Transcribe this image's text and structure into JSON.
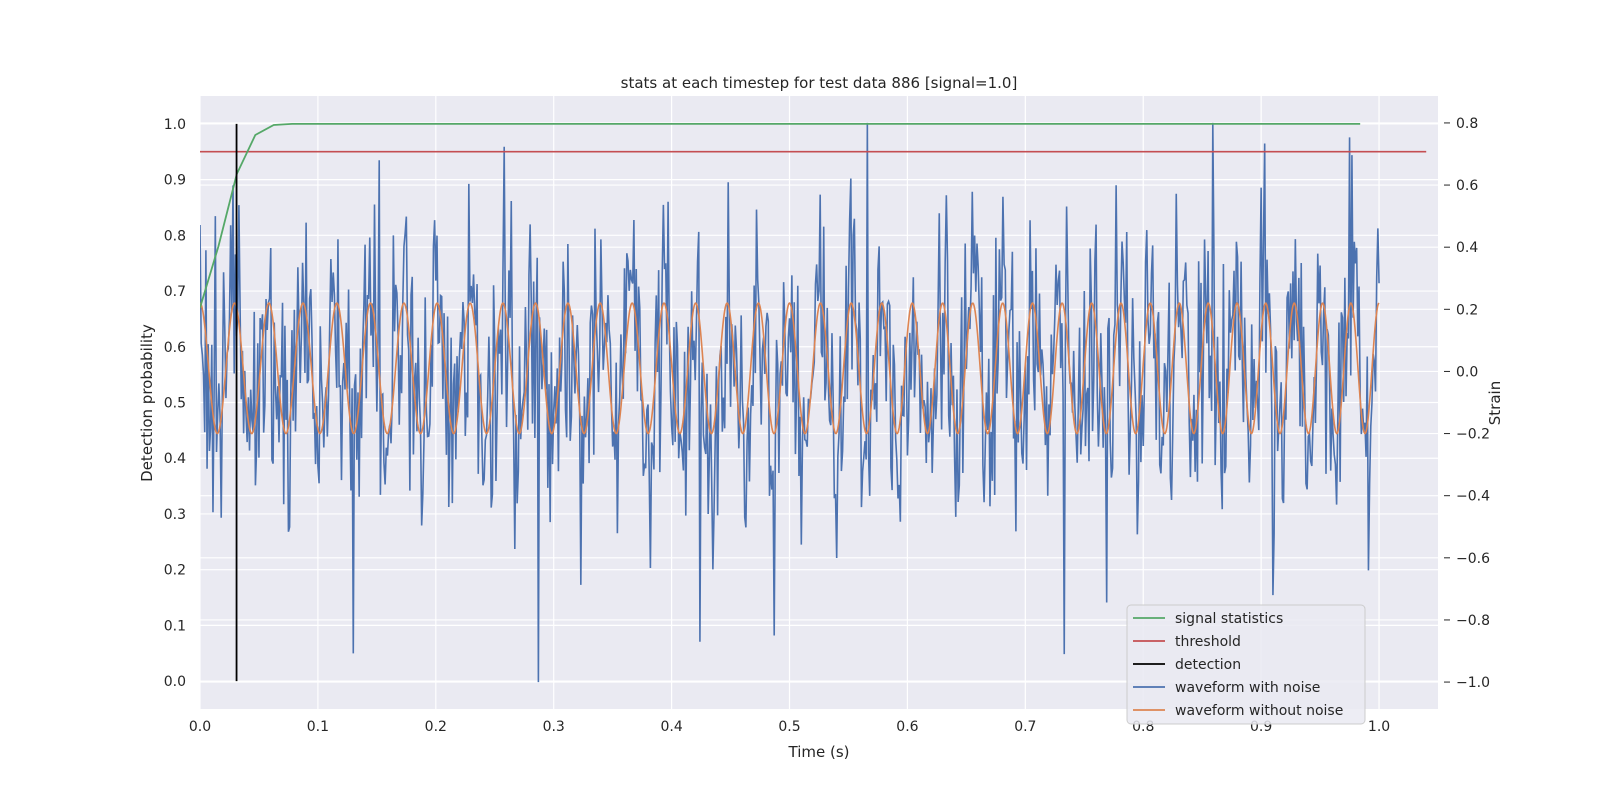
{
  "chart_data": {
    "type": "line",
    "title": "stats at each timestep for test data 886 [signal=1.0]",
    "xlabel": "Time (s)",
    "ylabel_left": "Detection probability",
    "ylabel_right": "Strain",
    "xlim": [
      0.0,
      1.05
    ],
    "ylim_left": [
      -0.05,
      1.05
    ],
    "ylim_right": [
      -1.0867,
      0.8867
    ],
    "xticks": [
      "0.0",
      "0.1",
      "0.2",
      "0.3",
      "0.4",
      "0.5",
      "0.6",
      "0.7",
      "0.8",
      "0.9",
      "1.0"
    ],
    "yticks_left": [
      "0.0",
      "0.1",
      "0.2",
      "0.3",
      "0.4",
      "0.5",
      "0.6",
      "0.7",
      "0.8",
      "0.9",
      "1.0"
    ],
    "yticks_right": [
      "-1.0",
      "-0.8",
      "-0.6",
      "-0.4",
      "-0.2",
      "0.0",
      "0.2",
      "0.4",
      "0.6",
      "0.8"
    ],
    "grid": true,
    "legend_position": "lower-right",
    "colors": {
      "signal_statistics": "#55a868",
      "threshold": "#c44e52",
      "detection": "#000000",
      "waveform_with_noise": "#4c72b0",
      "waveform_without_noise": "#dd8452",
      "background": "#eaeaf2",
      "grid": "#ffffff"
    },
    "series": [
      {
        "name": "signal statistics",
        "axis": "left",
        "x": [
          0.0,
          0.0156,
          0.0312,
          0.0469,
          0.0625,
          0.0781,
          0.0938,
          0.2,
          0.5,
          0.8,
          0.984
        ],
        "y": [
          0.67,
          0.78,
          0.91,
          0.98,
          0.998,
          1.0,
          1.0,
          1.0,
          1.0,
          1.0,
          1.0
        ]
      },
      {
        "name": "threshold",
        "axis": "left",
        "x": [
          0.0,
          1.04
        ],
        "y": [
          0.95,
          0.95
        ]
      },
      {
        "name": "detection",
        "axis": "left",
        "x": [
          0.031,
          0.031
        ],
        "y": [
          0.0,
          1.0
        ]
      },
      {
        "name": "waveform with noise",
        "axis": "right",
        "description_range": {
          "x": [
            0.0,
            1.0
          ],
          "min": -1.0,
          "max": 0.8
        },
        "highlights": [
          {
            "x": 0.013,
            "y": 0.5
          },
          {
            "x": 0.152,
            "y": 0.68
          },
          {
            "x": 0.287,
            "y": -1.0
          },
          {
            "x": 0.424,
            "y": -0.87
          },
          {
            "x": 0.566,
            "y": 0.8
          },
          {
            "x": 0.733,
            "y": -0.91
          },
          {
            "x": 0.859,
            "y": 0.8
          },
          {
            "x": 0.91,
            "y": -0.72
          }
        ]
      },
      {
        "name": "waveform without noise",
        "axis": "right",
        "amplitude": 0.21,
        "frequency_start_hz": 34,
        "frequency_end_hz": 42,
        "x": [
          0.0,
          1.0
        ]
      }
    ]
  }
}
